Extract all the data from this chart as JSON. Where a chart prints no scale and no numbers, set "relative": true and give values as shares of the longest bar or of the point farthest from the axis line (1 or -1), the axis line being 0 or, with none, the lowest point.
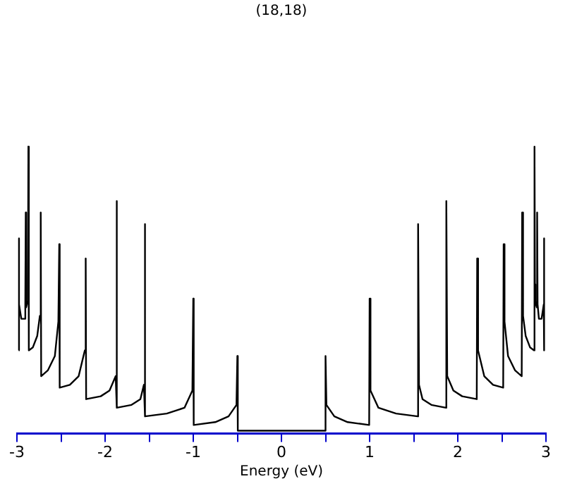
{
  "chart_data": {
    "type": "line",
    "title": "(18,18)",
    "xlabel": "Energy (eV)",
    "relative": true,
    "xlim": [
      -3,
      3
    ],
    "xticks": [
      -3,
      {
        "value": -2.5,
        "label": null
      },
      -2,
      {
        "value": -1.5,
        "label": null
      },
      -1,
      {
        "value": -0.5,
        "label": null
      },
      0,
      {
        "value": 0.5,
        "label": null
      },
      1,
      {
        "value": 1.5,
        "label": null
      },
      2,
      {
        "value": 2.5,
        "label": null
      },
      3
    ],
    "x": [
      -2.98,
      -2.978,
      -2.975,
      -2.95,
      -2.92,
      -2.905,
      -2.9,
      -2.895,
      -2.88,
      -2.875,
      -2.87,
      -2.865,
      -2.82,
      -2.77,
      -2.74,
      -2.73,
      -2.725,
      -2.65,
      -2.57,
      -2.53,
      -2.52,
      -2.515,
      -2.4,
      -2.3,
      -2.23,
      -2.22,
      -2.215,
      -2.05,
      -1.95,
      -1.88,
      -1.87,
      -1.865,
      -1.7,
      -1.6,
      -1.56,
      -1.55,
      -1.545,
      -1.3,
      -1.1,
      -1.01,
      -1.0,
      -0.995,
      -0.75,
      -0.6,
      -0.51,
      -0.5,
      -0.495,
      0.495,
      0.5,
      0.51,
      0.6,
      0.75,
      0.995,
      1.0,
      1.01,
      1.1,
      1.3,
      1.545,
      1.55,
      1.56,
      1.6,
      1.7,
      1.865,
      1.87,
      1.88,
      1.95,
      2.05,
      2.215,
      2.22,
      2.23,
      2.3,
      2.4,
      2.515,
      2.52,
      2.53,
      2.57,
      2.65,
      2.725,
      2.73,
      2.74,
      2.77,
      2.82,
      2.865,
      2.87,
      2.875,
      2.88,
      2.895,
      2.9,
      2.905,
      2.92,
      2.95,
      2.975,
      2.978,
      2.98
    ],
    "series": [
      {
        "color": "#000000",
        "values": [
          0.29,
          0.68,
          0.45,
          0.4,
          0.4,
          0.45,
          0.77,
          0.44,
          0.46,
          0.52,
          1.0,
          0.29,
          0.3,
          0.34,
          0.41,
          0.77,
          0.2,
          0.22,
          0.27,
          0.39,
          0.66,
          0.16,
          0.17,
          0.2,
          0.29,
          0.61,
          0.12,
          0.13,
          0.15,
          0.2,
          0.81,
          0.09,
          0.1,
          0.12,
          0.17,
          0.73,
          0.06,
          0.07,
          0.09,
          0.15,
          0.47,
          0.03,
          0.04,
          0.06,
          0.1,
          0.27,
          0.01,
          0.01,
          0.27,
          0.1,
          0.06,
          0.04,
          0.03,
          0.47,
          0.15,
          0.09,
          0.07,
          0.06,
          0.73,
          0.17,
          0.12,
          0.1,
          0.09,
          0.81,
          0.2,
          0.15,
          0.13,
          0.12,
          0.61,
          0.29,
          0.2,
          0.17,
          0.16,
          0.66,
          0.39,
          0.27,
          0.22,
          0.2,
          0.77,
          0.41,
          0.34,
          0.3,
          0.29,
          1.0,
          0.52,
          0.46,
          0.44,
          0.77,
          0.45,
          0.4,
          0.4,
          0.45,
          0.68,
          0.29
        ]
      }
    ]
  }
}
